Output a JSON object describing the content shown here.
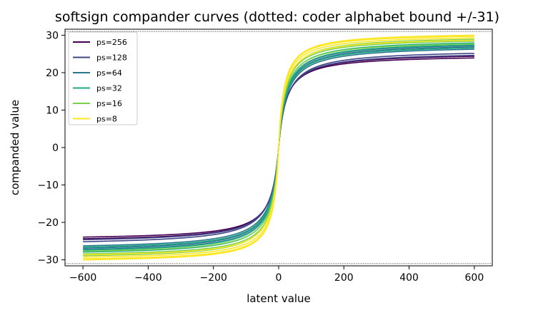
{
  "chart_data": {
    "type": "line",
    "title": "softsign compander curves (dotted: coder alphabet bound +/-31)",
    "xlabel": "latent value",
    "ylabel": "companded value",
    "xlim": [
      -655,
      655
    ],
    "ylim": [
      -31.6,
      31.6
    ],
    "xticks": [
      -600,
      -400,
      -200,
      0,
      200,
      400,
      600
    ],
    "yticks": [
      -30,
      -20,
      -10,
      0,
      10,
      20,
      30
    ],
    "xtick_labels": [
      "−600",
      "−400",
      "−200",
      "0",
      "200",
      "400",
      "600"
    ],
    "ytick_labels": [
      "−30",
      "−20",
      "−10",
      "0",
      "10",
      "20",
      "30"
    ],
    "x_range": [
      -600,
      600
    ],
    "bound_lines": [
      31,
      -31
    ],
    "legend_position": "upper-left",
    "grid": false,
    "series": [
      {
        "name": "ps=256",
        "color": "#440154",
        "curves": [
          {
            "a": 24.8,
            "s": 22
          },
          {
            "a": 25.3,
            "s": 23
          }
        ]
      },
      {
        "name": "ps=128",
        "color": "#414487",
        "curves": [
          {
            "a": 25.6,
            "s": 24
          },
          {
            "a": 26.2,
            "s": 25
          }
        ]
      },
      {
        "name": "ps=64",
        "color": "#2a788e",
        "curves": [
          {
            "a": 27.3,
            "s": 24
          },
          {
            "a": 27.9,
            "s": 23
          },
          {
            "a": 28.2,
            "s": 22
          }
        ]
      },
      {
        "name": "ps=32",
        "color": "#22a884",
        "curves": [
          {
            "a": 27.6,
            "s": 23
          },
          {
            "a": 28.4,
            "s": 22
          },
          {
            "a": 28.9,
            "s": 21
          }
        ]
      },
      {
        "name": "ps=16",
        "color": "#7ad151",
        "curves": [
          {
            "a": 28.6,
            "s": 20
          },
          {
            "a": 29.3,
            "s": 19
          },
          {
            "a": 29.8,
            "s": 19
          }
        ]
      },
      {
        "name": "ps=8",
        "color": "#fde725",
        "curves": [
          {
            "a": 29.5,
            "s": 18
          },
          {
            "a": 30.1,
            "s": 17
          },
          {
            "a": 30.5,
            "s": 16
          },
          {
            "a": 30.8,
            "s": 16
          }
        ]
      }
    ]
  }
}
